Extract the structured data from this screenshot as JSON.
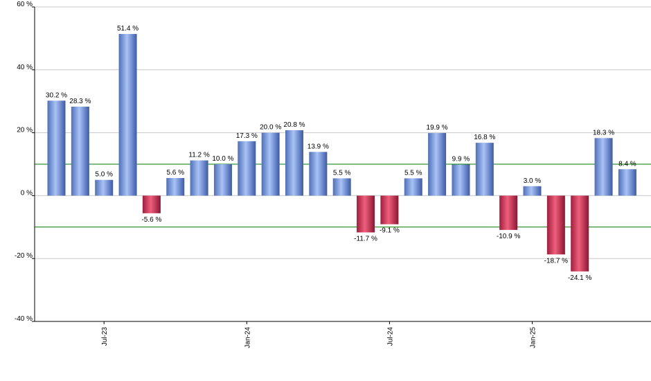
{
  "chart_data": {
    "type": "bar",
    "title": "",
    "xlabel": "",
    "ylabel": "",
    "ylim": [
      -40,
      60
    ],
    "yticks": [
      60,
      40,
      20,
      0,
      -20,
      -40
    ],
    "ytick_suffix": " %",
    "grid": true,
    "reference_lines": [
      10,
      -10
    ],
    "xtick_labels": [
      {
        "label": "Jul-23",
        "index": 2
      },
      {
        "label": "Jan-24",
        "index": 8
      },
      {
        "label": "Jul-24",
        "index": 14
      },
      {
        "label": "Jan-25",
        "index": 20
      }
    ],
    "values": [
      30.2,
      28.3,
      5.0,
      51.4,
      -5.6,
      5.6,
      11.2,
      10.0,
      17.3,
      20.0,
      20.8,
      13.9,
      5.5,
      -11.7,
      -9.1,
      5.5,
      19.9,
      9.9,
      16.8,
      -10.9,
      3.0,
      -18.7,
      -24.1,
      18.3,
      8.4
    ],
    "labels": [
      "30.2 %",
      "28.3 %",
      "5.0 %",
      "51.4 %",
      "-5.6 %",
      "5.6 %",
      "11.2 %",
      "10.0 %",
      "17.3 %",
      "20.0 %",
      "20.8 %",
      "13.9 %",
      "5.5 %",
      "-11.7 %",
      "-9.1 %",
      "5.5 %",
      "19.9 %",
      "9.9 %",
      "16.8 %",
      "-10.9 %",
      "3.0 %",
      "-18.7 %",
      "-24.1 %",
      "18.3 %",
      "8.4 %"
    ],
    "colors": {
      "positive": "#6f8fd6",
      "negative": "#c8284a",
      "grid": "#c8c8c8",
      "reference_line": "#007a00",
      "axis": "#000000"
    }
  }
}
